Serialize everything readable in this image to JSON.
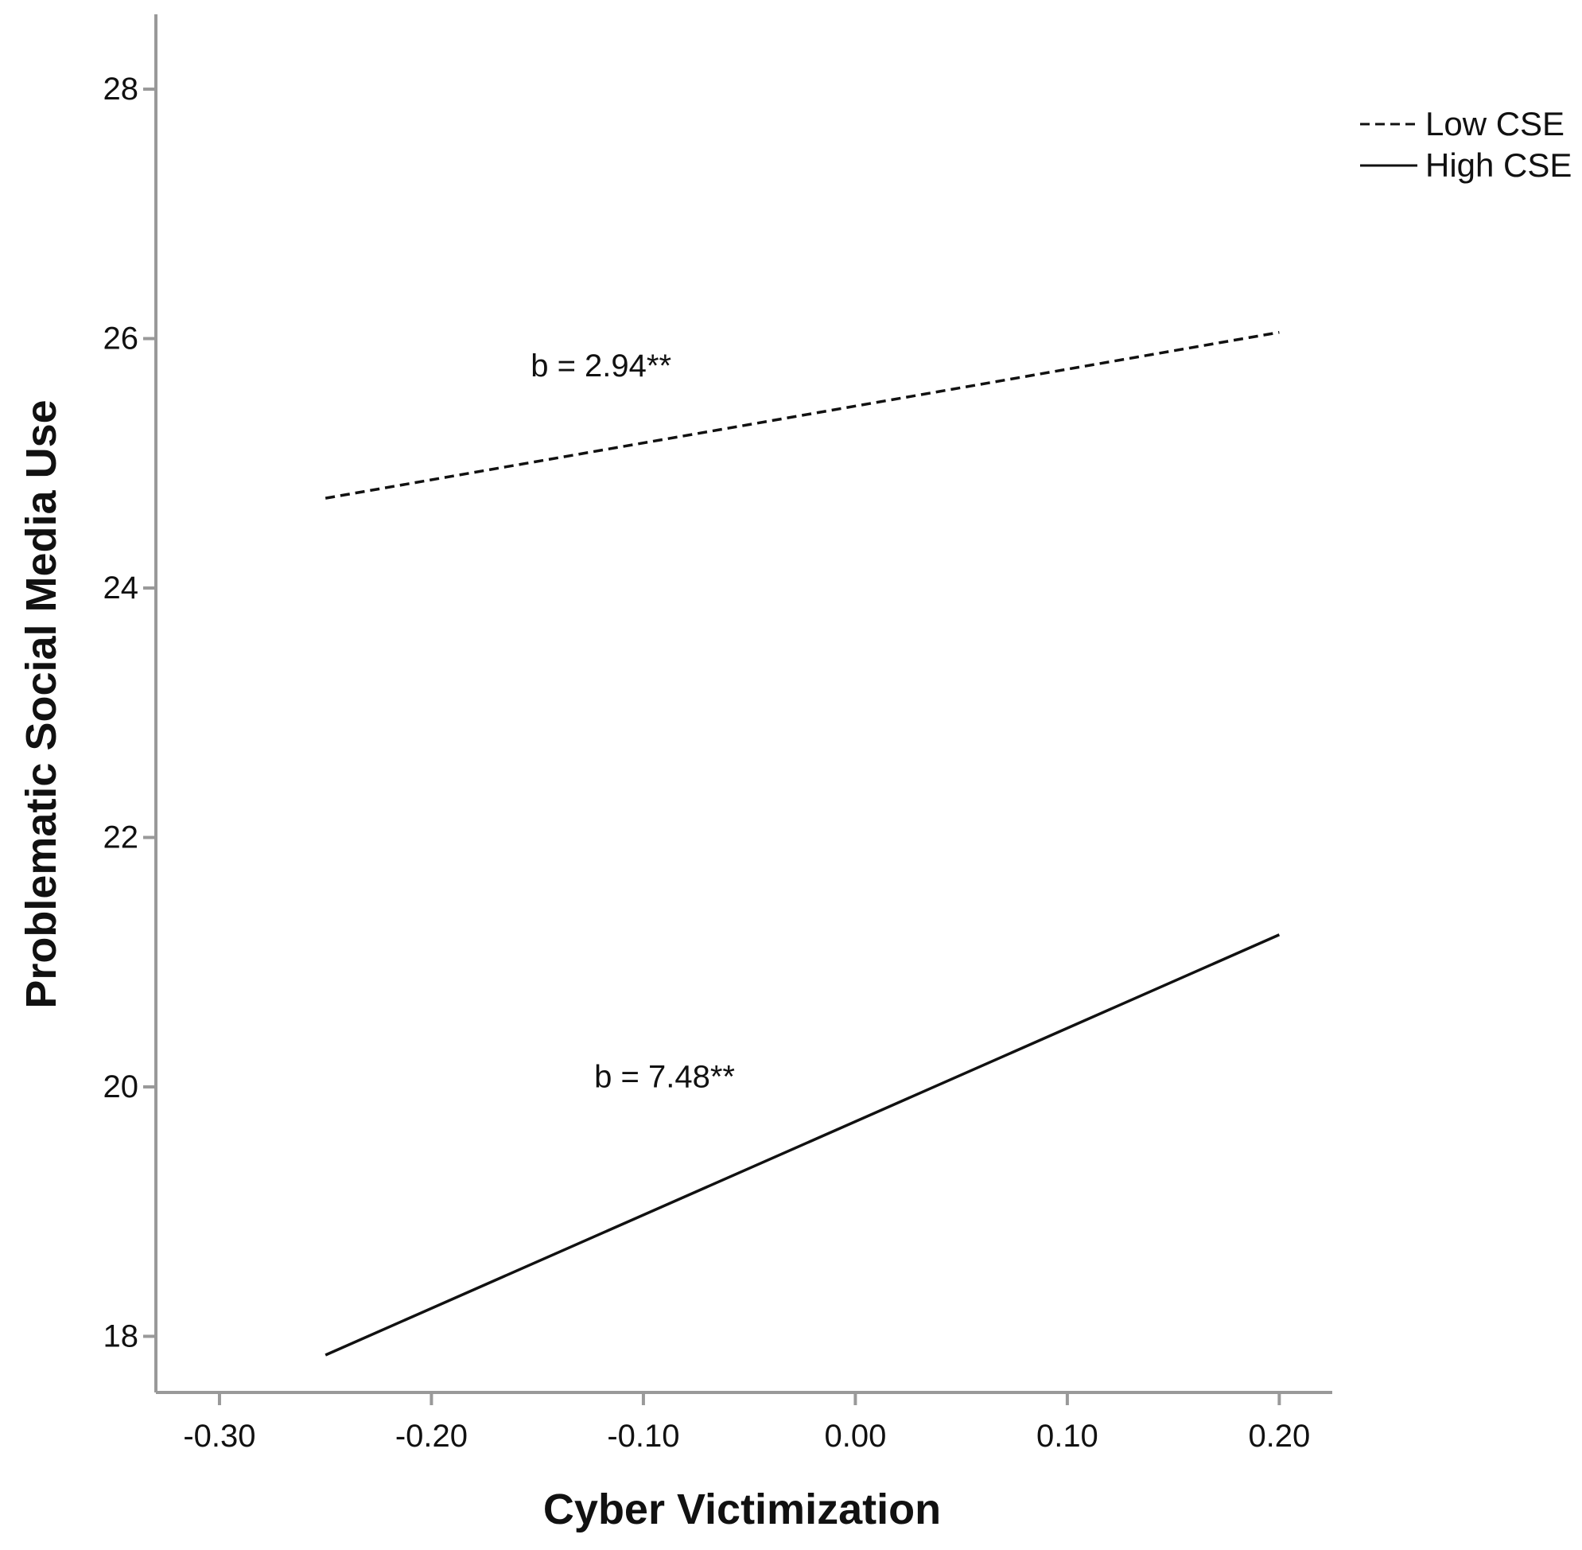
{
  "chart_data": {
    "type": "line",
    "xlabel": "Cyber Victimization",
    "ylabel": "Problematic Social Media Use",
    "xlim": [
      -0.33,
      0.225
    ],
    "ylim": [
      17.55,
      28.6
    ],
    "x_ticks": [
      "-0.30",
      "-0.20",
      "-0.10",
      "0.00",
      "0.10",
      "0.20"
    ],
    "y_ticks": [
      "18",
      "20",
      "22",
      "24",
      "26",
      "28"
    ],
    "series": [
      {
        "name": "Low CSE",
        "style": "dashed",
        "color": "#111111",
        "x": [
          -0.25,
          0.2
        ],
        "y": [
          24.72,
          26.05
        ]
      },
      {
        "name": "High CSE",
        "style": "solid",
        "color": "#111111",
        "x": [
          -0.25,
          0.2
        ],
        "y": [
          17.85,
          21.22
        ]
      }
    ],
    "annotations": [
      {
        "text": "b = 2.94**",
        "x": -0.12,
        "y": 25.78
      },
      {
        "text": "b = 7.48**",
        "x": -0.09,
        "y": 20.08
      }
    ],
    "legend": {
      "position": "top-right"
    },
    "grid": false
  }
}
